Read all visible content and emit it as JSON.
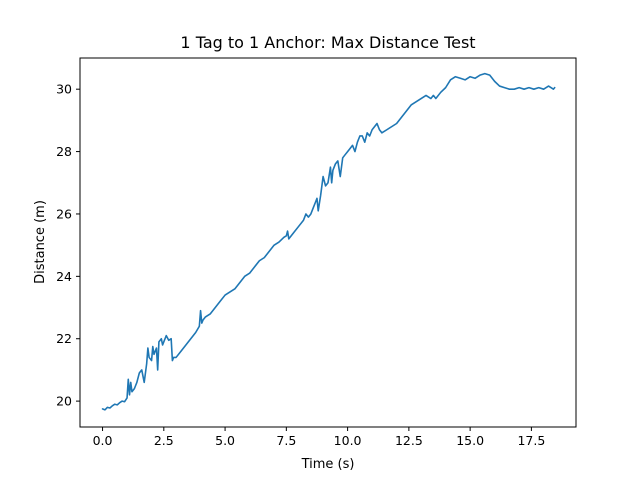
{
  "chart_data": {
    "type": "line",
    "title": "1 Tag to 1 Anchor: Max Distance Test",
    "xlabel": "Time (s)",
    "ylabel": "Distance (m)",
    "xlim": [
      -0.92,
      19.32
    ],
    "ylim": [
      19.17,
      31.0
    ],
    "xticks": [
      0.0,
      2.5,
      5.0,
      7.5,
      10.0,
      12.5,
      15.0,
      17.5
    ],
    "xtick_labels": [
      "0.0",
      "2.5",
      "5.0",
      "7.5",
      "10.0",
      "12.5",
      "15.0",
      "17.5"
    ],
    "yticks": [
      20,
      22,
      24,
      26,
      28,
      30
    ],
    "ytick_labels": [
      "20",
      "22",
      "24",
      "26",
      "28",
      "30"
    ],
    "grid": false,
    "legend": "none",
    "series": [
      {
        "color": "#1f77b4",
        "x": [
          0.0,
          0.1,
          0.2,
          0.3,
          0.4,
          0.5,
          0.6,
          0.7,
          0.8,
          0.9,
          1.0,
          1.05,
          1.1,
          1.15,
          1.2,
          1.3,
          1.35,
          1.4,
          1.5,
          1.6,
          1.7,
          1.8,
          1.85,
          1.9,
          2.0,
          2.05,
          2.1,
          2.2,
          2.25,
          2.3,
          2.4,
          2.45,
          2.5,
          2.6,
          2.7,
          2.8,
          2.85,
          2.9,
          3.0,
          3.2,
          3.4,
          3.6,
          3.8,
          3.95,
          4.0,
          4.05,
          4.1,
          4.2,
          4.4,
          4.6,
          4.8,
          5.0,
          5.2,
          5.4,
          5.6,
          5.8,
          6.0,
          6.2,
          6.4,
          6.6,
          6.8,
          7.0,
          7.2,
          7.4,
          7.5,
          7.55,
          7.6,
          7.8,
          8.0,
          8.2,
          8.3,
          8.4,
          8.5,
          8.6,
          8.7,
          8.75,
          8.8,
          8.9,
          9.0,
          9.1,
          9.2,
          9.3,
          9.35,
          9.4,
          9.5,
          9.6,
          9.7,
          9.8,
          9.9,
          10.0,
          10.1,
          10.2,
          10.3,
          10.4,
          10.5,
          10.6,
          10.7,
          10.8,
          10.9,
          11.0,
          11.1,
          11.2,
          11.3,
          11.4,
          11.6,
          11.8,
          12.0,
          12.2,
          12.4,
          12.6,
          12.8,
          13.0,
          13.2,
          13.4,
          13.5,
          13.6,
          13.8,
          14.0,
          14.2,
          14.4,
          14.6,
          14.8,
          15.0,
          15.2,
          15.4,
          15.6,
          15.8,
          16.0,
          16.2,
          16.4,
          16.6,
          16.8,
          17.0,
          17.2,
          17.4,
          17.6,
          17.8,
          18.0,
          18.2,
          18.4,
          18.45
        ],
        "y": [
          19.75,
          19.72,
          19.8,
          19.78,
          19.85,
          19.9,
          19.88,
          19.95,
          20.0,
          19.98,
          20.1,
          20.7,
          20.2,
          20.6,
          20.3,
          20.4,
          20.5,
          20.6,
          20.9,
          21.0,
          20.6,
          21.2,
          21.7,
          21.4,
          21.3,
          21.75,
          21.5,
          21.7,
          21.0,
          21.9,
          22.0,
          21.8,
          21.9,
          22.1,
          21.95,
          22.0,
          21.3,
          21.4,
          21.4,
          21.6,
          21.8,
          22.0,
          22.2,
          22.4,
          22.9,
          22.5,
          22.6,
          22.7,
          22.8,
          23.0,
          23.2,
          23.4,
          23.5,
          23.6,
          23.8,
          24.0,
          24.1,
          24.3,
          24.5,
          24.6,
          24.8,
          25.0,
          25.1,
          25.25,
          25.3,
          25.45,
          25.2,
          25.4,
          25.6,
          25.8,
          26.0,
          25.9,
          26.0,
          26.2,
          26.4,
          26.5,
          26.1,
          26.6,
          27.2,
          26.9,
          27.0,
          27.5,
          27.0,
          27.4,
          27.6,
          27.7,
          27.2,
          27.8,
          27.9,
          28.0,
          28.1,
          28.2,
          28.0,
          28.3,
          28.5,
          28.5,
          28.3,
          28.6,
          28.5,
          28.7,
          28.8,
          28.9,
          28.7,
          28.6,
          28.7,
          28.8,
          28.9,
          29.1,
          29.3,
          29.5,
          29.6,
          29.7,
          29.8,
          29.7,
          29.8,
          29.7,
          29.9,
          30.05,
          30.3,
          30.4,
          30.35,
          30.3,
          30.4,
          30.35,
          30.45,
          30.5,
          30.45,
          30.25,
          30.1,
          30.05,
          30.0,
          30.0,
          30.05,
          30.0,
          30.05,
          30.0,
          30.05,
          30.0,
          30.1,
          30.0,
          30.05
        ]
      }
    ]
  }
}
